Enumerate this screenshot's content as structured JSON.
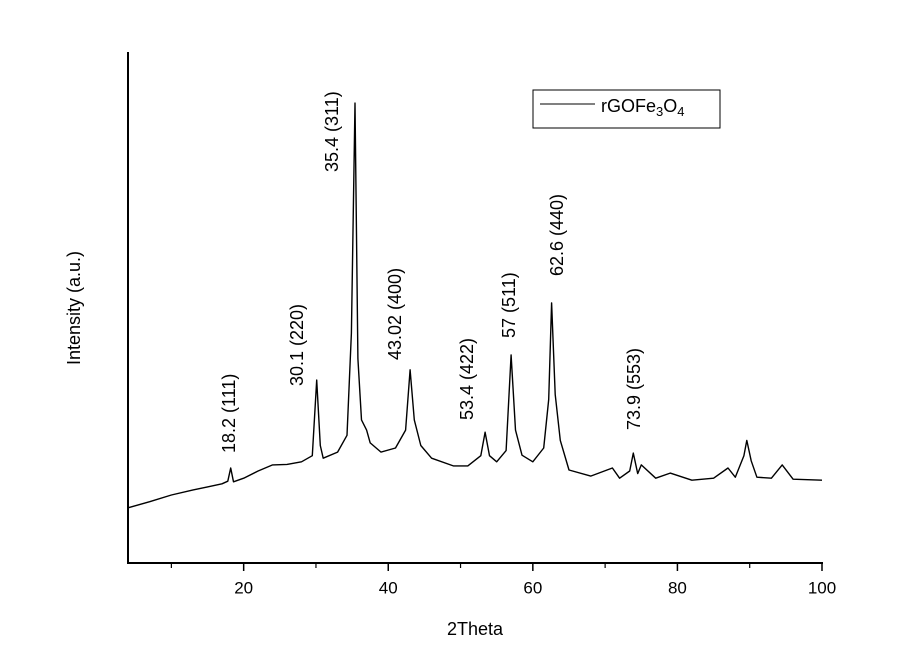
{
  "chart_data": {
    "type": "line",
    "x_label": "2Theta",
    "y_label": "Intensity (a.u.)",
    "xlim": [
      4,
      100
    ],
    "ylim": [
      0,
      100
    ],
    "xticks": [
      20,
      40,
      60,
      80,
      100
    ],
    "xminor_ticks": [
      10,
      30,
      50,
      70,
      90
    ],
    "legend": "top-right",
    "annotations": [
      "18.2 (111)",
      "30.1 (220)",
      "35.4 (311)",
      "43.02 (400)",
      "53.4 (422)",
      "57 (511)",
      "62.6 (440)",
      "73.9 (553)"
    ],
    "x": [
      4,
      7,
      10,
      13,
      15,
      17,
      17.8,
      18.2,
      18.6,
      20,
      22,
      24,
      26,
      28,
      29.5,
      30.1,
      30.6,
      31,
      33,
      34.3,
      34.9,
      35.4,
      35.8,
      36.3,
      37,
      37.5,
      39,
      41,
      42.4,
      43.02,
      43.6,
      44.5,
      46,
      49,
      51,
      52.8,
      53.4,
      54,
      55,
      56.3,
      57,
      57.6,
      58.5,
      60,
      61.5,
      62.2,
      62.6,
      63.1,
      63.8,
      65,
      68,
      71,
      72,
      73.4,
      73.9,
      74.5,
      75,
      77,
      79,
      82,
      85,
      87,
      88,
      89.2,
      89.6,
      90.2,
      91,
      93,
      94.5,
      96,
      100
    ],
    "series": [
      {
        "name": "rGOFe3O4",
        "color": "#000000",
        "values": [
          10.8,
          12,
          13.3,
          14.3,
          14.9,
          15.5,
          16,
          18.6,
          15.9,
          16.6,
          18,
          19.2,
          19.3,
          19.8,
          21,
          35.8,
          23,
          20.5,
          21.7,
          25,
          45,
          90,
          40,
          28,
          26,
          23.5,
          21.7,
          22.5,
          26,
          37.8,
          28,
          23,
          20.5,
          19,
          19,
          21,
          25.6,
          21,
          19.8,
          22,
          40.7,
          26,
          21.1,
          19.8,
          22.5,
          32,
          50.9,
          33,
          24,
          18.2,
          17,
          18.6,
          16.6,
          18,
          21.5,
          17.5,
          19.2,
          16.6,
          17.6,
          16.2,
          16.6,
          18.6,
          16.8,
          21,
          24,
          20,
          16.8,
          16.6,
          19.2,
          16.4,
          16.2
        ]
      }
    ]
  }
}
